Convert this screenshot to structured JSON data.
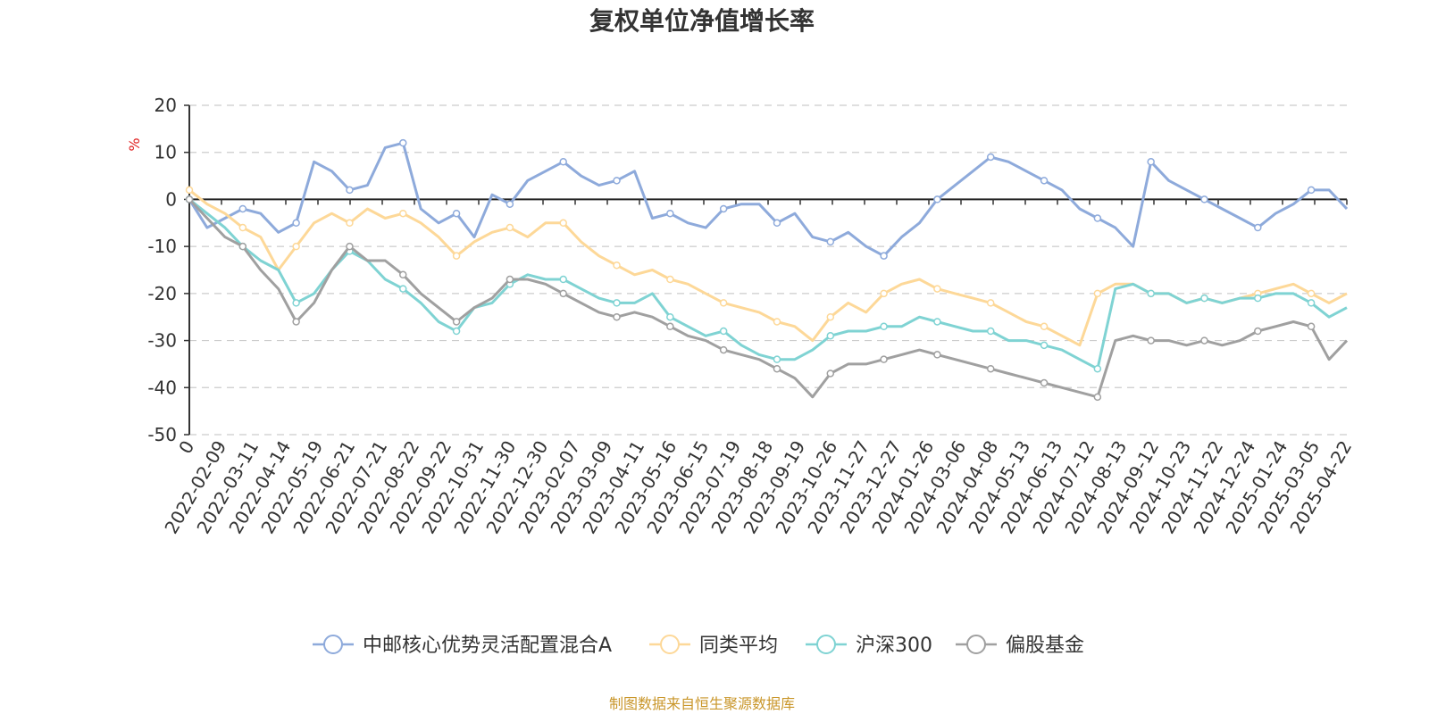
{
  "chart_data": {
    "type": "line",
    "title": "复权单位净值增长率",
    "ylabel": "%",
    "ylim": [
      -50,
      20
    ],
    "yticks": [
      20,
      10,
      0,
      -10,
      -20,
      -30,
      -40,
      -50
    ],
    "grid": true,
    "legend_position": "bottom",
    "x_labels": [
      "0",
      "2022-02-09",
      "2022-03-11",
      "2022-04-14",
      "2022-05-19",
      "2022-06-21",
      "2022-07-21",
      "2022-08-22",
      "2022-09-22",
      "2022-10-31",
      "2022-11-30",
      "2022-12-30",
      "2023-02-07",
      "2023-03-09",
      "2023-04-11",
      "2023-05-16",
      "2023-06-15",
      "2023-07-19",
      "2023-08-18",
      "2023-09-19",
      "2023-10-26",
      "2023-11-27",
      "2023-12-27",
      "2024-01-26",
      "2024-03-06",
      "2024-04-08",
      "2024-05-13",
      "2024-06-13",
      "2024-07-12",
      "2024-08-13",
      "2024-09-12",
      "2024-10-23",
      "2024-11-22",
      "2024-12-24",
      "2025-01-24",
      "2025-03-05",
      "2025-04-22"
    ],
    "series": [
      {
        "name": "中邮核心优势灵活配置混合A",
        "color": "#8eaadb",
        "values": [
          0,
          -6,
          -4,
          -2,
          -3,
          -7,
          -5,
          8,
          6,
          2,
          3,
          11,
          12,
          -2,
          -5,
          -3,
          -8,
          1,
          -1,
          4,
          6,
          8,
          5,
          3,
          4,
          6,
          -4,
          -3,
          -5,
          -6,
          -2,
          -1,
          -1,
          -5,
          -3,
          -8,
          -9,
          -7,
          -10,
          -12,
          -8,
          -5,
          0,
          3,
          6,
          9,
          8,
          6,
          4,
          2,
          -2,
          -4,
          -6,
          -10,
          8,
          4,
          2,
          0,
          -2,
          -4,
          -6,
          -3,
          -1,
          2,
          2,
          -2
        ]
      },
      {
        "name": "同类平均",
        "color": "#fdd898",
        "values": [
          2,
          -1,
          -3,
          -6,
          -8,
          -15,
          -10,
          -5,
          -3,
          -5,
          -2,
          -4,
          -3,
          -5,
          -8,
          -12,
          -9,
          -7,
          -6,
          -8,
          -5,
          -5,
          -9,
          -12,
          -14,
          -16,
          -15,
          -17,
          -18,
          -20,
          -22,
          -23,
          -24,
          -26,
          -27,
          -30,
          -25,
          -22,
          -24,
          -20,
          -18,
          -17,
          -19,
          -20,
          -21,
          -22,
          -24,
          -26,
          -27,
          -29,
          -31,
          -20,
          -18,
          -18,
          -20,
          -20,
          -22,
          -21,
          -22,
          -21,
          -20,
          -19,
          -18,
          -20,
          -22,
          -20
        ]
      },
      {
        "name": "沪深300",
        "color": "#7fd3d3",
        "values": [
          0,
          -3,
          -6,
          -10,
          -13,
          -15,
          -22,
          -20,
          -15,
          -11,
          -13,
          -17,
          -19,
          -22,
          -26,
          -28,
          -23,
          -22,
          -18,
          -16,
          -17,
          -17,
          -19,
          -21,
          -22,
          -22,
          -20,
          -25,
          -27,
          -29,
          -28,
          -31,
          -33,
          -34,
          -34,
          -32,
          -29,
          -28,
          -28,
          -27,
          -27,
          -25,
          -26,
          -27,
          -28,
          -28,
          -30,
          -30,
          -31,
          -32,
          -34,
          -36,
          -19,
          -18,
          -20,
          -20,
          -22,
          -21,
          -22,
          -21,
          -21,
          -20,
          -20,
          -22,
          -25,
          -23
        ]
      },
      {
        "name": "偏股基金",
        "color": "#a0a0a0",
        "values": [
          0,
          -4,
          -8,
          -10,
          -15,
          -19,
          -26,
          -22,
          -15,
          -10,
          -13,
          -13,
          -16,
          -20,
          -23,
          -26,
          -23,
          -21,
          -17,
          -17,
          -18,
          -20,
          -22,
          -24,
          -25,
          -24,
          -25,
          -27,
          -29,
          -30,
          -32,
          -33,
          -34,
          -36,
          -38,
          -42,
          -37,
          -35,
          -35,
          -34,
          -33,
          -32,
          -33,
          -34,
          -35,
          -36,
          -37,
          -38,
          -39,
          -40,
          -41,
          -42,
          -30,
          -29,
          -30,
          -30,
          -31,
          -30,
          -31,
          -30,
          -28,
          -27,
          -26,
          -27,
          -34,
          -30
        ]
      }
    ]
  },
  "source_note": "制图数据来自恒生聚源数据库"
}
